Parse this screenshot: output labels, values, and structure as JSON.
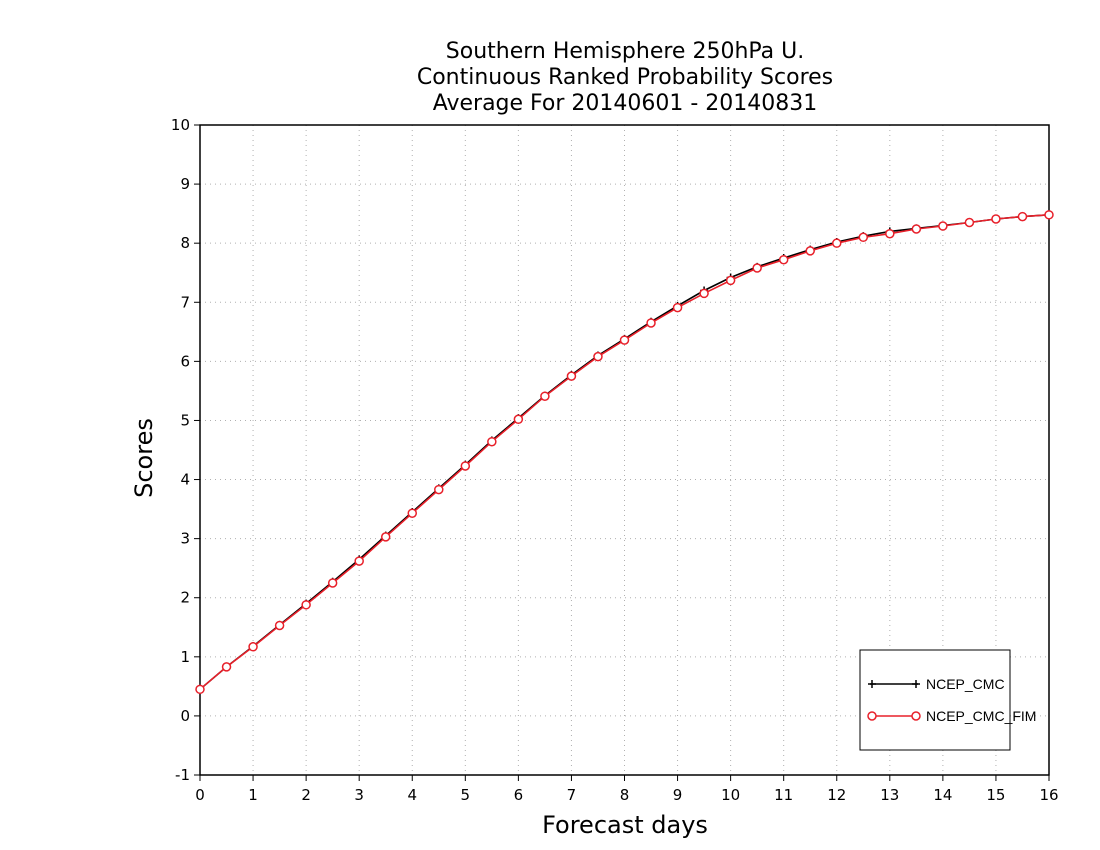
{
  "chart_data": {
    "type": "line",
    "title_lines": [
      "Southern Hemisphere 250hPa U.",
      "Continuous Ranked Probability Scores",
      "Average For 20140601 - 20140831"
    ],
    "xlabel": "Forecast days",
    "ylabel": "Scores",
    "xlim": [
      0,
      16
    ],
    "ylim": [
      -1,
      10
    ],
    "x_ticks": [
      0,
      1,
      2,
      3,
      4,
      5,
      6,
      7,
      8,
      9,
      10,
      11,
      12,
      13,
      14,
      15,
      16
    ],
    "y_ticks": [
      -1,
      0,
      1,
      2,
      3,
      4,
      5,
      6,
      7,
      8,
      9,
      10
    ],
    "grid": true,
    "legend_position": "bottom-right",
    "x": [
      0,
      0.5,
      1,
      1.5,
      2,
      2.5,
      3,
      3.5,
      4,
      4.5,
      5,
      5.5,
      6,
      6.5,
      7,
      7.5,
      8,
      8.5,
      9,
      9.5,
      10,
      10.5,
      11,
      11.5,
      12,
      12.5,
      13,
      13.5,
      14,
      14.5,
      15,
      15.5,
      16
    ],
    "series": [
      {
        "name": "NCEP_CMC",
        "color": "#000000",
        "marker": "plus",
        "values": [
          0.45,
          0.83,
          1.18,
          1.54,
          1.9,
          2.27,
          2.65,
          3.05,
          3.45,
          3.85,
          4.25,
          4.66,
          5.04,
          5.42,
          5.77,
          6.1,
          6.38,
          6.67,
          6.94,
          7.2,
          7.42,
          7.6,
          7.75,
          7.89,
          8.02,
          8.12,
          8.2,
          8.25,
          8.3,
          8.35,
          8.41,
          8.45,
          8.48
        ]
      },
      {
        "name": "NCEP_CMC_FIM",
        "color": "#e8202a",
        "marker": "circle",
        "values": [
          0.45,
          0.83,
          1.17,
          1.53,
          1.88,
          2.25,
          2.62,
          3.03,
          3.43,
          3.83,
          4.23,
          4.64,
          5.02,
          5.41,
          5.75,
          6.08,
          6.36,
          6.65,
          6.91,
          7.15,
          7.37,
          7.58,
          7.72,
          7.87,
          8.0,
          8.1,
          8.16,
          8.24,
          8.29,
          8.35,
          8.41,
          8.45,
          8.48
        ]
      }
    ]
  }
}
